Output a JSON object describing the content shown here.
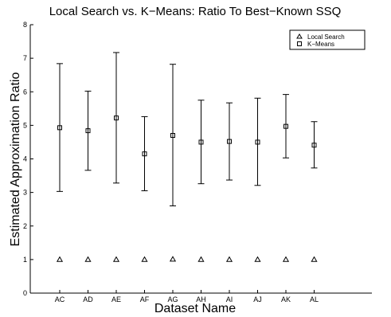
{
  "chart_data": {
    "type": "scatter",
    "title": "Local Search vs. K−Means: Ratio To Best−Known SSQ",
    "xlabel": "Dataset Name",
    "ylabel": "Estimated Approximation Ratio",
    "categories": [
      "AC",
      "AD",
      "AE",
      "AF",
      "AG",
      "AH",
      "AI",
      "AJ",
      "AK",
      "AL"
    ],
    "ylim": [
      0,
      8
    ],
    "yticks": [
      "0",
      "1",
      "2",
      "3",
      "4",
      "5",
      "6",
      "7",
      "8"
    ],
    "grid": false,
    "legend_position": "top-right",
    "series": [
      {
        "name": "Local Search",
        "marker": "triangle",
        "values": [
          1.0,
          1.0,
          1.0,
          1.0,
          1.01,
          1.0,
          1.0,
          1.0,
          1.0,
          1.0
        ]
      },
      {
        "name": "K−Means",
        "marker": "square",
        "values": [
          4.93,
          4.84,
          5.22,
          4.15,
          4.7,
          4.5,
          4.52,
          4.5,
          4.97,
          4.41
        ],
        "err_low": [
          3.03,
          3.66,
          3.28,
          3.05,
          2.6,
          3.26,
          3.37,
          3.21,
          4.03,
          3.73
        ],
        "err_high": [
          6.84,
          6.02,
          7.17,
          5.26,
          6.82,
          5.75,
          5.67,
          5.81,
          5.92,
          5.11
        ]
      }
    ],
    "colors": {
      "axis": "#000000",
      "marker": "#000000",
      "background": "#ffffff"
    }
  }
}
